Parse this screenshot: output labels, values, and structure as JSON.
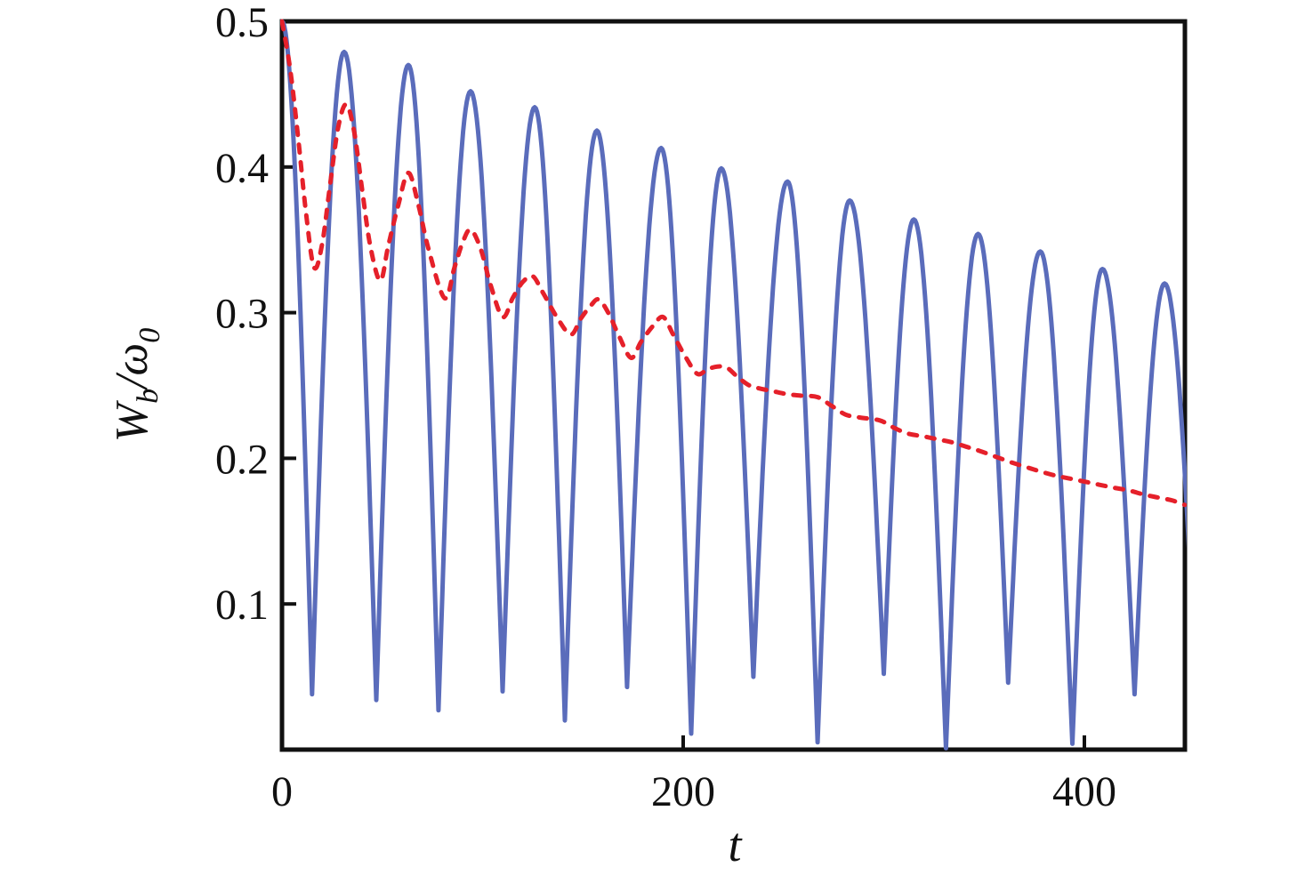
{
  "page": {
    "background": "#ffffff",
    "frame_color": "#111111"
  },
  "chart_data": {
    "type": "line",
    "title": "",
    "xlabel": "t",
    "ylabel": "Wb/ω0",
    "ylabel_parts": {
      "numerator": "W",
      "numerator_sub": "b",
      "slash_denominator": "/ω",
      "denominator_sub": "0"
    },
    "x_range": [
      0,
      450
    ],
    "y_range": [
      0,
      0.5
    ],
    "grid": false,
    "legend": "none",
    "x_ticks": [
      {
        "value": 0,
        "label": "0",
        "show_tick": false
      },
      {
        "value": 200,
        "label": "200",
        "show_tick": true
      },
      {
        "value": 400,
        "label": "400",
        "show_tick": true
      }
    ],
    "y_ticks": [
      {
        "value": 0.5,
        "label": "0.5",
        "show_tick": false
      },
      {
        "value": 0.4,
        "label": "0.4",
        "show_tick": true
      },
      {
        "value": 0.3,
        "label": "0.3",
        "show_tick": true
      },
      {
        "value": 0.2,
        "label": "0.2",
        "show_tick": true
      },
      {
        "value": 0.1,
        "label": "0.1",
        "show_tick": true
      }
    ],
    "series": [
      {
        "name": "fast-oscillation-solid-blue",
        "color": "#5a6cbb",
        "line_style": "solid",
        "line_width": 5,
        "shape": "rounded-peaks-sharp-valleys",
        "extrema_t_v": [
          [
            0,
            0.5
          ],
          [
            15,
            0.038
          ],
          [
            31,
            0.479
          ],
          [
            47,
            0.034
          ],
          [
            63,
            0.47
          ],
          [
            78,
            0.027
          ],
          [
            94,
            0.452
          ],
          [
            110,
            0.04
          ],
          [
            126,
            0.441
          ],
          [
            141,
            0.02
          ],
          [
            157,
            0.425
          ],
          [
            172,
            0.043
          ],
          [
            189,
            0.413
          ],
          [
            204,
            0.011
          ],
          [
            219,
            0.399
          ],
          [
            235,
            0.05
          ],
          [
            252,
            0.39
          ],
          [
            267,
            0.005
          ],
          [
            283,
            0.377
          ],
          [
            300,
            0.052
          ],
          [
            315,
            0.364
          ],
          [
            331,
            0.001
          ],
          [
            347,
            0.354
          ],
          [
            362,
            0.046
          ],
          [
            378,
            0.342
          ],
          [
            394,
            0.004
          ],
          [
            409,
            0.33
          ],
          [
            425,
            0.038
          ],
          [
            440,
            0.32
          ],
          [
            456,
            0.03
          ]
        ]
      },
      {
        "name": "damped-average-dashed-red",
        "color": "#e5202a",
        "line_style": "dashed",
        "line_width": 5,
        "points_t_v": [
          [
            0,
            0.5
          ],
          [
            4,
            0.468
          ],
          [
            8,
            0.421
          ],
          [
            12,
            0.368
          ],
          [
            16,
            0.331
          ],
          [
            20,
            0.347
          ],
          [
            24,
            0.388
          ],
          [
            28,
            0.427
          ],
          [
            32,
            0.443
          ],
          [
            36,
            0.424
          ],
          [
            40,
            0.384
          ],
          [
            44,
            0.346
          ],
          [
            49,
            0.322
          ],
          [
            53,
            0.346
          ],
          [
            58,
            0.374
          ],
          [
            63,
            0.396
          ],
          [
            68,
            0.374
          ],
          [
            73,
            0.344
          ],
          [
            81,
            0.31
          ],
          [
            86,
            0.331
          ],
          [
            90,
            0.348
          ],
          [
            94,
            0.357
          ],
          [
            99,
            0.344
          ],
          [
            104,
            0.319
          ],
          [
            110,
            0.297
          ],
          [
            115,
            0.31
          ],
          [
            120,
            0.321
          ],
          [
            125,
            0.325
          ],
          [
            130,
            0.314
          ],
          [
            137,
            0.297
          ],
          [
            144,
            0.285
          ],
          [
            149,
            0.296
          ],
          [
            154,
            0.305
          ],
          [
            158,
            0.309
          ],
          [
            163,
            0.299
          ],
          [
            168,
            0.284
          ],
          [
            174,
            0.269
          ],
          [
            179,
            0.28
          ],
          [
            185,
            0.291
          ],
          [
            190,
            0.297
          ],
          [
            195,
            0.285
          ],
          [
            201,
            0.27
          ],
          [
            207,
            0.258
          ],
          [
            212,
            0.261
          ],
          [
            217,
            0.263
          ],
          [
            222,
            0.262
          ],
          [
            227,
            0.256
          ],
          [
            233,
            0.25
          ],
          [
            238,
            0.248
          ],
          [
            245,
            0.246
          ],
          [
            252,
            0.244
          ],
          [
            259,
            0.243
          ],
          [
            267,
            0.242
          ],
          [
            274,
            0.236
          ],
          [
            281,
            0.23
          ],
          [
            288,
            0.228
          ],
          [
            298,
            0.226
          ],
          [
            305,
            0.221
          ],
          [
            312,
            0.217
          ],
          [
            320,
            0.215
          ],
          [
            327,
            0.213
          ],
          [
            334,
            0.211
          ],
          [
            341,
            0.208
          ],
          [
            348,
            0.205
          ],
          [
            356,
            0.201
          ],
          [
            364,
            0.197
          ],
          [
            371,
            0.194
          ],
          [
            378,
            0.191
          ],
          [
            386,
            0.188
          ],
          [
            393,
            0.186
          ],
          [
            400,
            0.184
          ],
          [
            407,
            0.182
          ],
          [
            414,
            0.18
          ],
          [
            422,
            0.178
          ],
          [
            430,
            0.175
          ],
          [
            437,
            0.173
          ],
          [
            444,
            0.171
          ],
          [
            450,
            0.168
          ]
        ]
      }
    ]
  }
}
